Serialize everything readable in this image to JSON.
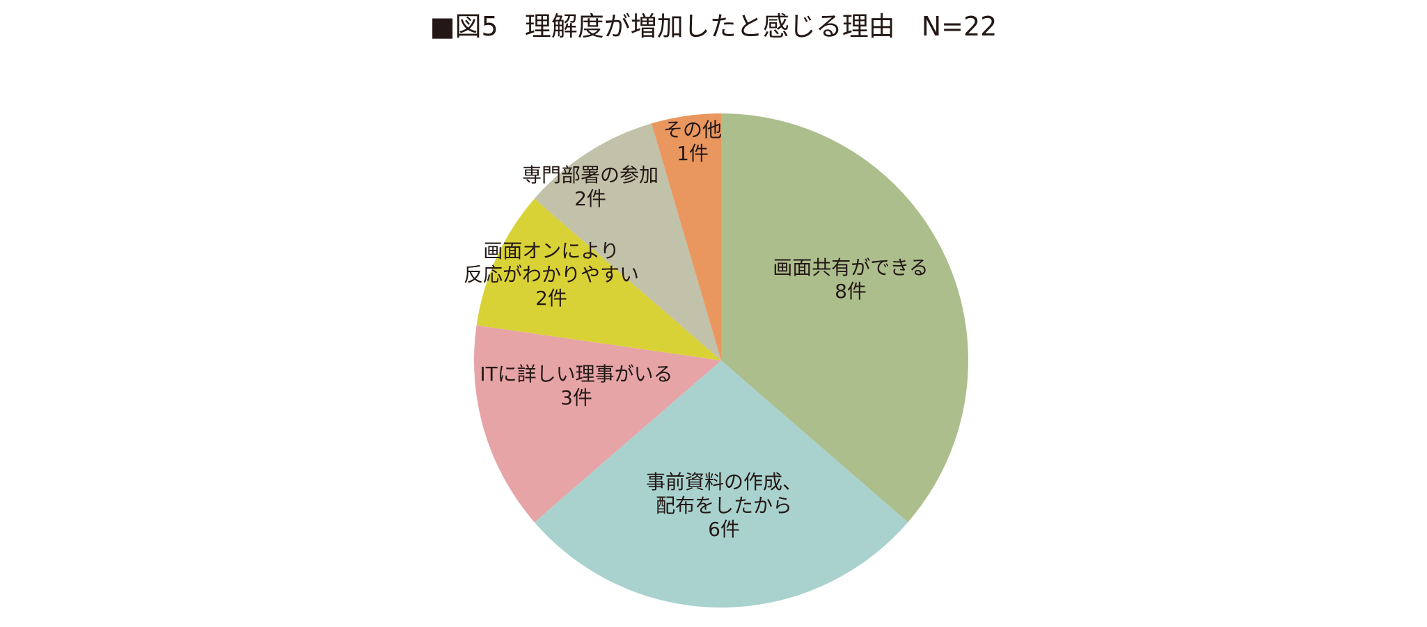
{
  "chart_data": {
    "type": "pie",
    "title": "■図5　理解度が増加したと感じる理由　N=22",
    "start_angle_deg": 0,
    "direction": "clockwise",
    "slices": [
      {
        "label_lines": [
          "画面共有ができる"
        ],
        "value": 8,
        "value_label": "8件",
        "color": "#adbe8d"
      },
      {
        "label_lines": [
          "事前資料の作成、",
          "配布をしたから"
        ],
        "value": 6,
        "value_label": "6件",
        "color": "#a9d2ce"
      },
      {
        "label_lines": [
          "ITに詳しい理事がいる"
        ],
        "value": 3,
        "value_label": "3件",
        "color": "#e6a4a7"
      },
      {
        "label_lines": [
          "画面オンにより",
          "反応がわかりやすい"
        ],
        "value": 2,
        "value_label": "2件",
        "color": "#d9d237"
      },
      {
        "label_lines": [
          "専門部署の参加"
        ],
        "value": 2,
        "value_label": "2件",
        "color": "#c2c1a9"
      },
      {
        "label_lines": [
          "その他"
        ],
        "value": 1,
        "value_label": "1件",
        "color": "#e9975f"
      }
    ]
  }
}
